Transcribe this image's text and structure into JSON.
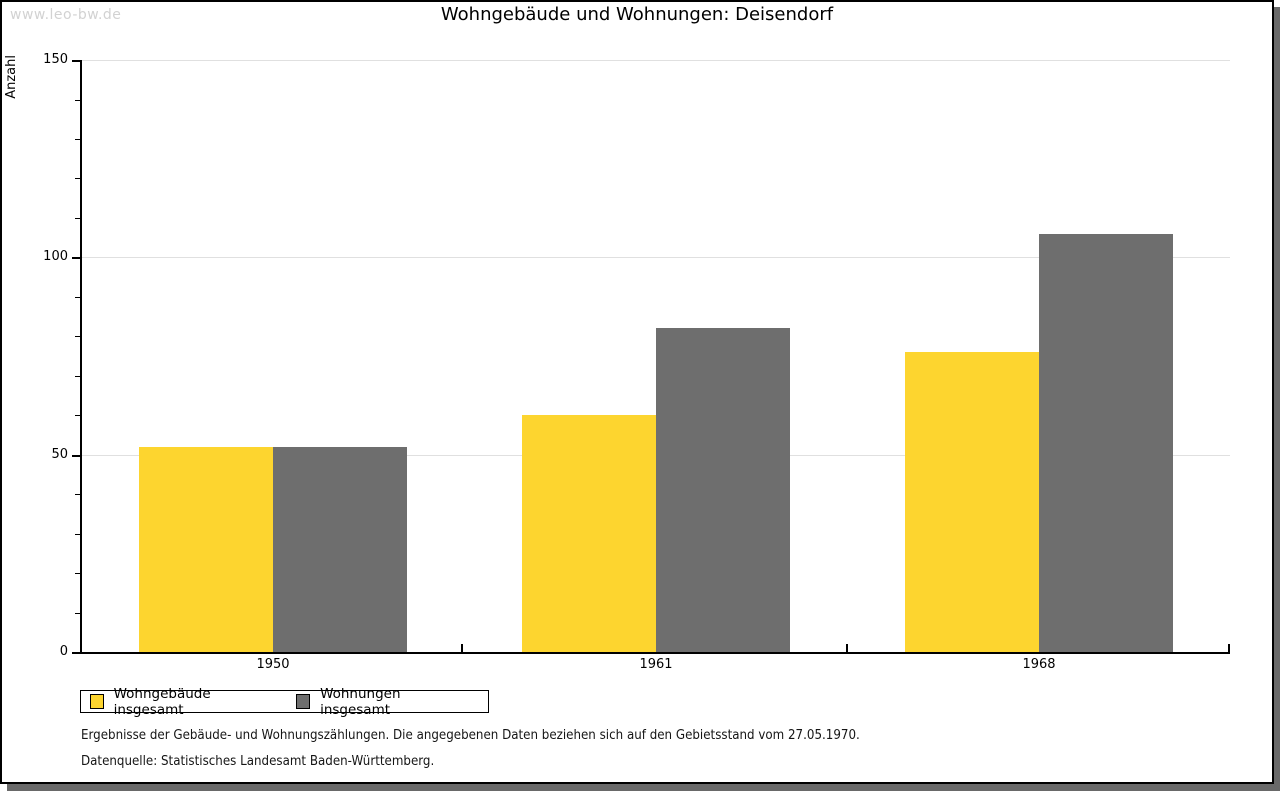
{
  "watermark": "www.leo-bw.de",
  "chart_data": {
    "type": "bar",
    "title": "Wohngebäude und Wohnungen: Deisendorf",
    "ylabel": "Anzahl",
    "xlabel": "",
    "categories": [
      "1950",
      "1961",
      "1968"
    ],
    "series": [
      {
        "name": "Wohngebäude insgesamt",
        "color": "#FDD52F",
        "values": [
          52,
          60,
          76
        ]
      },
      {
        "name": "Wohnungen insgesamt",
        "color": "#6E6E6E",
        "values": [
          52,
          82,
          106
        ]
      }
    ],
    "ylim": [
      0,
      150
    ],
    "yticks": [
      0,
      50,
      100,
      150
    ],
    "minor_tick_step": 10,
    "grid": "horizontal-major",
    "legend_position": "bottom-left"
  },
  "footnotes": {
    "line1": "Ergebnisse der Gebäude- und Wohnungszählungen. Die angegebenen Daten beziehen sich auf den Gebietsstand vom 27.05.1970.",
    "line2": "Datenquelle: Statistisches Landesamt Baden-Württemberg."
  },
  "theme": {
    "gridline": "#E0E0E0",
    "watermark_color": "#D2D2D2",
    "frame_shadow": "#696969",
    "axis_color": "#000000"
  }
}
